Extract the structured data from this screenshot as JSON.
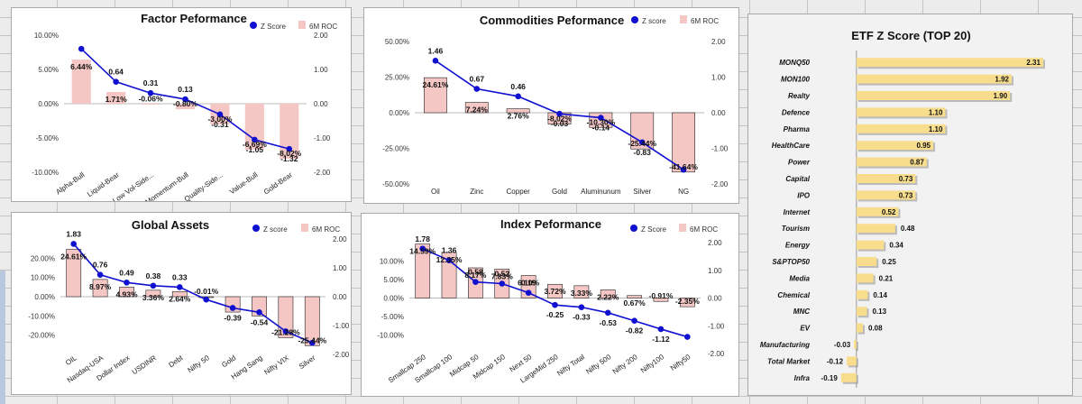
{
  "charts": [
    {
      "id": "factor",
      "title": "Factor Peformance",
      "legend": {
        "line": "Z Score",
        "bar": "6M ROC"
      },
      "categories": [
        "Alpha-Bull",
        "Liquid-Bear",
        "Low Vol-Side...",
        "Momentum-Bull",
        "Quality-Side...",
        "Value-Bull",
        "Gold-Bear"
      ],
      "roc": [
        6.44,
        1.71,
        -0.06,
        -0.8,
        -3.0,
        -6.69,
        -8.02
      ],
      "roc_labels": [
        "6.44%",
        "1.71%",
        "-0.06%",
        "-0.80%",
        "-3.00%",
        "-6.69%",
        "-8.02%"
      ],
      "z": [
        1.6,
        0.64,
        0.31,
        0.13,
        -0.31,
        -1.05,
        -1.32
      ],
      "z_labels": [
        "",
        "0.64",
        "0.31",
        "0.13",
        "-0.31",
        "-1.05",
        "-1.32"
      ],
      "y_left": {
        "min": -10,
        "max": 10,
        "ticks": [
          "10.00%",
          "5.00%",
          "0.00%",
          "-5.00%",
          "-10.00%"
        ]
      },
      "y_right": {
        "min": -2,
        "max": 2,
        "ticks": [
          "2.00",
          "1.00",
          "0.00",
          "-1.00",
          "-2.00"
        ]
      }
    },
    {
      "id": "commodities",
      "title": "Commodities Peformance",
      "legend": {
        "line": "Z score",
        "bar": "6M ROC"
      },
      "categories": [
        "Oil",
        "Zinc",
        "Copper",
        "Gold",
        "Aluminunum",
        "Silver",
        "NG"
      ],
      "roc": [
        24.61,
        7.24,
        2.76,
        -8.02,
        -10.3,
        -25.44,
        -41.64
      ],
      "roc_labels": [
        "24.61%",
        "7.24%",
        "2.76%",
        "-8.02%",
        "-10.30%",
        "-25.44%",
        "-41.64%"
      ],
      "z": [
        1.46,
        0.67,
        0.46,
        -0.03,
        -0.14,
        -0.83,
        -1.6
      ],
      "z_labels": [
        "1.46",
        "0.67",
        "0.46",
        "-0.03",
        "-0.14",
        "-0.83",
        ""
      ],
      "y_left": {
        "min": -50,
        "max": 50,
        "ticks": [
          "50.00%",
          "25.00%",
          "0.00%",
          "-25.00%",
          "-50.00%"
        ]
      },
      "y_right": {
        "min": -2,
        "max": 2,
        "ticks": [
          "2.00",
          "1.00",
          "0.00",
          "-1.00",
          "-2.00"
        ]
      }
    },
    {
      "id": "global",
      "title": "Global Assets",
      "legend": {
        "line": "Z score",
        "bar": "6M ROC"
      },
      "categories": [
        "OIL",
        "Nasdaq-USA",
        "Dollar Index",
        "USDINR",
        "Debt",
        "Nifty 50",
        "Gold",
        "Hang Sang",
        "Nifty VIX",
        "Silver"
      ],
      "roc": [
        24.61,
        8.97,
        4.93,
        3.36,
        2.64,
        -0.01,
        -8.0,
        -10.0,
        -21.28,
        -25.44
      ],
      "roc_labels": [
        "24.61%",
        "8.97%",
        "4.93%",
        "3.36%",
        "2.64%",
        "-0.01%",
        "",
        "",
        "-21.28%",
        "-25.44%"
      ],
      "z": [
        1.83,
        0.76,
        0.49,
        0.38,
        0.33,
        -0.1,
        -0.39,
        -0.54,
        -1.2,
        -1.6
      ],
      "z_labels": [
        "1.83",
        "0.76",
        "0.49",
        "0.38",
        "0.33",
        "",
        "-0.39",
        "-0.54",
        "",
        ""
      ],
      "y_left": {
        "min": -30,
        "max": 30,
        "ticks": [
          "20.00%",
          "10.00%",
          "0.00%",
          "-10.00%",
          "-20.00%"
        ]
      },
      "y_right": {
        "min": -2,
        "max": 2,
        "ticks": [
          "2.00",
          "1.00",
          "0.00",
          "-1.00",
          "-2.00"
        ]
      }
    },
    {
      "id": "index",
      "title": "Index Peformance",
      "legend": {
        "line": "Z Score",
        "bar": "6M ROC"
      },
      "categories": [
        "Smallcap 250",
        "Smallcap 100",
        "Midcap 50",
        "Midcap 150",
        "Next 50",
        "LargeMid 250",
        "Nifty Total",
        "Nifty 500",
        "Nifty 200",
        "Nifty100",
        "Nifty50"
      ],
      "roc": [
        14.59,
        12.35,
        8.17,
        7.83,
        6.1,
        3.72,
        3.33,
        2.22,
        0.67,
        -0.91,
        -2.35
      ],
      "roc_labels": [
        "14.59%",
        "12.35%",
        "8.17%",
        "7.83%",
        "6.10%",
        "3.72%",
        "3.33%",
        "2.22%",
        "0.67%",
        "-0.91%",
        "-2.35%"
      ],
      "z": [
        1.78,
        1.36,
        0.58,
        0.52,
        0.19,
        -0.25,
        -0.33,
        -0.53,
        -0.82,
        -1.12,
        -1.4
      ],
      "z_labels": [
        "1.78",
        "1.36",
        "0.58",
        "0.52",
        "0.19",
        "-0.25",
        "-0.33",
        "-0.53",
        "-0.82",
        "-1.12",
        ""
      ],
      "y_left": {
        "min": -15,
        "max": 15,
        "ticks": [
          "10.00%",
          "5.00%",
          "0.00%",
          "-5.00%",
          "-10.00%"
        ]
      },
      "y_right": {
        "min": -2,
        "max": 2,
        "ticks": [
          "2.00",
          "1.00",
          "0.00",
          "-1.00",
          "-2.00"
        ]
      }
    }
  ],
  "etf": {
    "title": "ETF Z Score (TOP 20)",
    "categories": [
      "MONQ50",
      "MON100",
      "Realty",
      "Defence",
      "Pharma",
      "HealthCare",
      "Power",
      "Capital",
      "IPO",
      "Internet",
      "Tourism",
      "Energy",
      "S&PTOP50",
      "Media",
      "Chemical",
      "MNC",
      "EV",
      "Manufacturing",
      "Total Market",
      "Infra"
    ],
    "values": [
      2.31,
      1.92,
      1.9,
      1.1,
      1.1,
      0.95,
      0.87,
      0.73,
      0.73,
      0.52,
      0.48,
      0.34,
      0.25,
      0.21,
      0.14,
      0.13,
      0.08,
      -0.03,
      -0.12,
      -0.19
    ],
    "value_labels": [
      "2.31",
      "1.92",
      "1.90",
      "1.10",
      "1.10",
      "0.95",
      "0.87",
      "0.73",
      "0.73",
      "0.52",
      "0.48",
      "0.34",
      "0.25",
      "0.21",
      "0.14",
      "0.13",
      "0.08",
      "-0.03",
      "-0.12",
      "-0.19"
    ],
    "x_range": [
      -0.5,
      2.5
    ],
    "x_ticks": [
      "-0.50",
      "0.00",
      "0.50",
      "1.00",
      "1.50",
      "2.00",
      "2.50"
    ]
  },
  "colors": {
    "line": "#1010d0",
    "bar_fill": "#f4c7c5",
    "bar_stroke": "#222222",
    "etf_bar": "#f7dd8c"
  }
}
